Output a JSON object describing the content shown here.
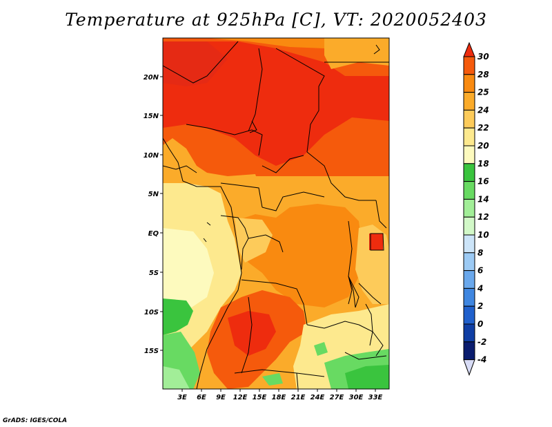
{
  "title": "Temperature at 925hPa [C], VT: 2020052403",
  "credit": "GrADS: IGES/COLA",
  "map": {
    "lat_labels": [
      "20N",
      "15N",
      "10N",
      "5N",
      "EQ",
      "5S",
      "10S",
      "15S"
    ],
    "lon_labels": [
      "3E",
      "6E",
      "9E",
      "12E",
      "15E",
      "18E",
      "21E",
      "24E",
      "27E",
      "30E",
      "33E"
    ]
  },
  "colorbar": {
    "labels": [
      "30",
      "28",
      "25",
      "24",
      "22",
      "20",
      "18",
      "16",
      "14",
      "12",
      "10",
      "8",
      "6",
      "4",
      "2",
      "0",
      "-2",
      "-4"
    ],
    "colors": [
      "#ee2c0e",
      "#f55a0c",
      "#f98a10",
      "#fbab2a",
      "#fdcb5a",
      "#fde98e",
      "#fdfabe",
      "#3ac43e",
      "#68da62",
      "#a2ee98",
      "#d2f8c8",
      "#cce4f8",
      "#9ccaf4",
      "#6aa8ec",
      "#3f86e0",
      "#2060cc",
      "#0f3ea4",
      "#0a1c6e",
      "#d8dcf6"
    ]
  }
}
